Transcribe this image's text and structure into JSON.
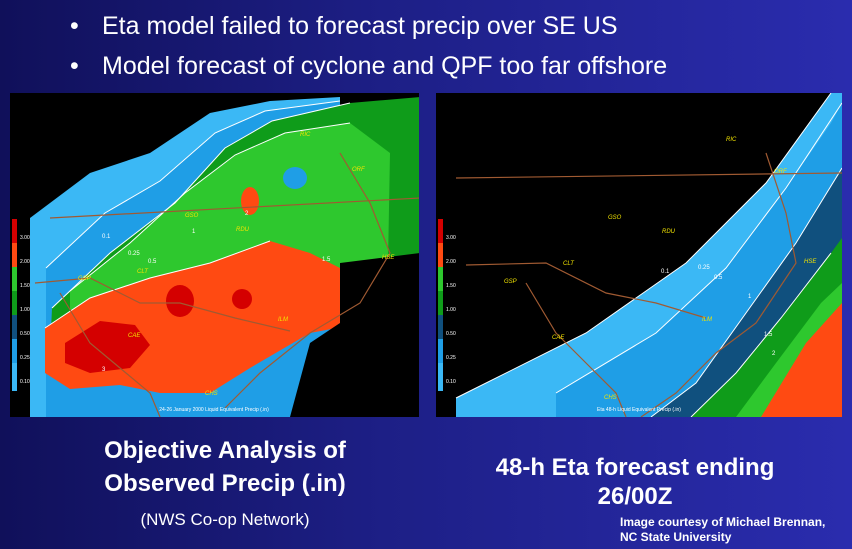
{
  "bullets": [
    "Eta model failed to forecast precip over SE US",
    "Model forecast of cyclone and QPF too far offshore"
  ],
  "bullet_marker": "•",
  "left_panel": {
    "title_line1": "Objective Analysis of",
    "title_line2": "Observed Precip (.in)",
    "subtitle": "(NWS Co-op Network)",
    "map_footer": "24-26 January 2000 Liquid Equivalent Precip (.in)",
    "legend": [
      "3.00",
      "2.00",
      "1.50",
      "1.00",
      "0.50",
      "0.25",
      "0.10"
    ],
    "cities": [
      "RIC",
      "ORF",
      "GSO",
      "RDU",
      "HSE",
      "GSP",
      "CLT",
      "CAE",
      "ILM",
      "CHS"
    ],
    "contours": [
      "0.1",
      "0.25",
      "0.5",
      "1",
      "1.5",
      "2",
      "3"
    ]
  },
  "right_panel": {
    "title_line1": "48-h Eta forecast ending",
    "title_line2": "26/00Z",
    "map_footer": "Eta 48-h Liquid Equivalent Precip (.in)",
    "legend": [
      "3.00",
      "2.00",
      "1.50",
      "1.00",
      "0.50",
      "0.25",
      "0.10"
    ],
    "cities": [
      "RIC",
      "ORF",
      "GSO",
      "RDU",
      "HSE",
      "GSP",
      "CLT",
      "CAE",
      "ILM",
      "CHS"
    ],
    "contours": [
      "0.1",
      "0.25",
      "0.5",
      "1",
      "1.5",
      "2"
    ]
  },
  "credit_line1": "Image courtesy of Michael Brennan,",
  "credit_line2": "NC State University",
  "colors": {
    "precip_3": "#d40000",
    "precip_2": "#ff4a12",
    "precip_1_5": "#2ec82e",
    "precip_1": "#0f9c1a",
    "precip_0_5": "#10507e",
    "precip_0_25": "#1f9ee6",
    "precip_0_1": "#3bb8f5",
    "city_label": "#f2e400",
    "border": "#a05a32"
  }
}
